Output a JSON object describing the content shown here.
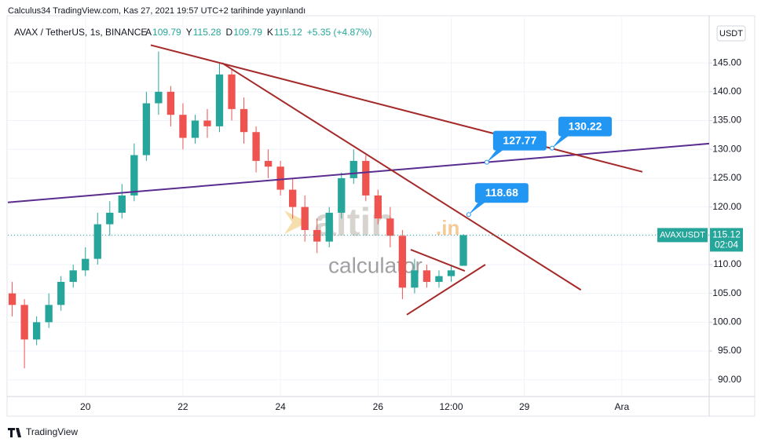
{
  "header": "Calculus34 TradingView.com, Kas 27, 2021 19:57 UTC+2 tarihinde yayınlandı",
  "chart_data": {
    "type": "candlestick",
    "symbol": "AVAX / TetherUS, 1s, BINANCE",
    "ohlc_header": [
      {
        "label": "A",
        "value": 109.79
      },
      {
        "label": "Y",
        "value": 115.28
      },
      {
        "label": "D",
        "value": 109.79
      },
      {
        "label": "K",
        "value": 115.12
      }
    ],
    "change": "+5.35 (+4.87%)",
    "currency": "USDT",
    "ticker_tag": "AVAXUSDT",
    "countdown": "02:04",
    "up_color": "#26a69a",
    "down_color": "#ef5350",
    "x": [
      18.5,
      18.75,
      19,
      19.25,
      19.5,
      19.75,
      20,
      20.25,
      20.5,
      20.75,
      21,
      21.25,
      21.5,
      21.75,
      22,
      22.25,
      22.5,
      22.75,
      23,
      23.25,
      23.5,
      23.75,
      24,
      24.25,
      24.5,
      24.75,
      25,
      25.25,
      25.5,
      25.75,
      26,
      26.25,
      26.5,
      26.75,
      27,
      27.25,
      27.5,
      27.75
    ],
    "open": [
      105,
      103,
      97,
      100,
      103,
      107,
      109,
      111,
      117,
      119,
      122,
      129,
      138,
      140,
      136,
      132,
      135,
      134,
      143,
      137,
      133,
      128,
      127,
      123,
      120,
      116,
      114,
      119,
      125,
      128,
      122,
      118,
      115,
      106,
      109,
      107,
      108,
      109.79
    ],
    "high": [
      107,
      104,
      101,
      105,
      108,
      110,
      113,
      119,
      121,
      124,
      131,
      140,
      147,
      141,
      138,
      136,
      137,
      145,
      144,
      139,
      134,
      130,
      128,
      125,
      122,
      118,
      120,
      126,
      130,
      129,
      123,
      120,
      116,
      111,
      110,
      109,
      110,
      115.28
    ],
    "low": [
      101,
      92,
      96,
      99,
      102,
      106,
      108,
      110,
      115,
      118,
      121,
      128,
      136,
      134,
      130,
      131,
      132,
      133,
      135,
      131,
      126,
      125,
      122,
      118,
      114,
      112,
      113,
      118,
      124,
      121,
      117,
      113,
      104,
      105,
      106,
      106,
      107,
      109.79
    ],
    "close": [
      103,
      97,
      100,
      103,
      107,
      109,
      111,
      117,
      119,
      122,
      129,
      138,
      140,
      136,
      132,
      135,
      134,
      143,
      137,
      133,
      128,
      127,
      123,
      120,
      116,
      114,
      119,
      125,
      128,
      122,
      118,
      115,
      106,
      109,
      107,
      108,
      109,
      115.12
    ],
    "xlim": [
      18.41,
      32.79
    ],
    "ylim": [
      87.1,
      153.2
    ],
    "yticks": [
      {
        "value": 90,
        "label": "90.00"
      },
      {
        "value": 95,
        "label": "95.00"
      },
      {
        "value": 100,
        "label": "100.00"
      },
      {
        "value": 105,
        "label": "105.00"
      },
      {
        "value": 110,
        "label": "110.00"
      },
      {
        "value": 115,
        "label": "115.00"
      },
      {
        "value": 120,
        "label": "120.00"
      },
      {
        "value": 125,
        "label": "125.00"
      },
      {
        "value": 130,
        "label": "130.00"
      },
      {
        "value": 135,
        "label": "135.00"
      },
      {
        "value": 140,
        "label": "140.00"
      },
      {
        "value": 145,
        "label": "145.00"
      }
    ],
    "xticks": [
      {
        "value": 20,
        "label": "20"
      },
      {
        "value": 22,
        "label": "22"
      },
      {
        "value": 24,
        "label": "24"
      },
      {
        "value": 26,
        "label": "26"
      },
      {
        "value": 27.5,
        "label": "12:00"
      },
      {
        "value": 29,
        "label": "29"
      },
      {
        "value": 31,
        "label": "Ara"
      }
    ],
    "grid": true,
    "drawings": [
      {
        "color": "#5b2c8f",
        "x": [
          18.41,
          32.79
        ],
        "y": [
          120.8,
          131.0
        ]
      },
      {
        "color": "#a52a2a",
        "x": [
          21.34,
          31.42
        ],
        "y": [
          148.1,
          126.1
        ]
      },
      {
        "color": "#a52a2a",
        "x": [
          22.8,
          30.16
        ],
        "y": [
          145.0,
          105.6
        ]
      },
      {
        "color": "#a52a2a",
        "x": [
          26.67,
          27.78
        ],
        "y": [
          112.6,
          108.9
        ]
      },
      {
        "color": "#a52a2a",
        "x": [
          26.59,
          28.2
        ],
        "y": [
          101.3,
          110.0
        ]
      }
    ],
    "callouts": [
      {
        "x": 27.86,
        "y": 118.68
      },
      {
        "x": 28.23,
        "y": 127.77
      },
      {
        "x": 29.57,
        "y": 130.22
      }
    ]
  },
  "watermark": {
    "brand": "altin",
    "suffix": ".in",
    "sub": "calculator"
  },
  "footer": "TradingView"
}
